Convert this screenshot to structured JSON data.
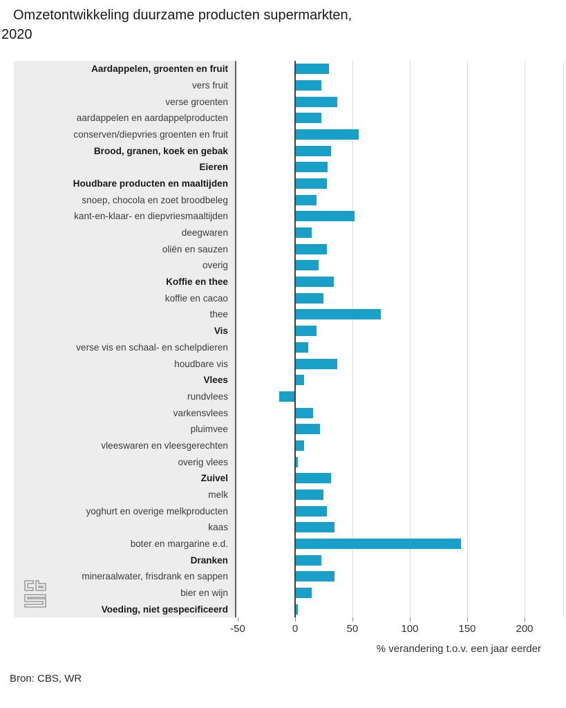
{
  "title": {
    "line1": "Omzetontwikkeling duurzame producten supermarkten,",
    "line2": "2020"
  },
  "source": "Bron: CBS, WR",
  "logo": "cbs-logo",
  "colors": {
    "bar": "#19a0c8",
    "label_panel": "#ededed",
    "gridline": "#d9d9d9",
    "zero_line": "#404040",
    "axis_text": "#333333"
  },
  "chart_data": {
    "type": "bar",
    "orientation": "horizontal",
    "title": "Omzetontwikkeling duurzame producten supermarkten, 2020",
    "xlabel": "% verandering t.o.v. een jaar eerder",
    "xlim": [
      -50,
      236
    ],
    "xticks": [
      -50,
      0,
      50,
      100,
      150,
      200
    ],
    "grid": true,
    "legend": false,
    "rows": [
      {
        "label": "Aardappelen, groenten en fruit",
        "value": 29,
        "bold": true
      },
      {
        "label": "vers fruit",
        "value": 22,
        "bold": false
      },
      {
        "label": "verse groenten",
        "value": 36,
        "bold": false
      },
      {
        "label": "aardappelen en aardappelproducten",
        "value": 22,
        "bold": false
      },
      {
        "label": "conserven/diepvries groenten en fruit",
        "value": 55,
        "bold": false
      },
      {
        "label": "Brood, granen, koek en gebak",
        "value": 31,
        "bold": true
      },
      {
        "label": "Eieren",
        "value": 28,
        "bold": true
      },
      {
        "label": "Houdbare producten en maaltijden",
        "value": 27,
        "bold": true
      },
      {
        "label": "snoep, chocola en zoet broodbeleg",
        "value": 18,
        "bold": false
      },
      {
        "label": "kant-en-klaar- en diepvriesmaaltijden",
        "value": 51,
        "bold": false
      },
      {
        "label": "deegwaren",
        "value": 14,
        "bold": false
      },
      {
        "label": "oliën en sauzen",
        "value": 27,
        "bold": false
      },
      {
        "label": "overig",
        "value": 20,
        "bold": false
      },
      {
        "label": "Koffie en thee",
        "value": 33,
        "bold": true
      },
      {
        "label": "koffie en cacao",
        "value": 24,
        "bold": false
      },
      {
        "label": "thee",
        "value": 74,
        "bold": false
      },
      {
        "label": "Vis",
        "value": 18,
        "bold": true
      },
      {
        "label": "verse vis en schaal- en schelpdieren",
        "value": 11,
        "bold": false
      },
      {
        "label": "houdbare vis",
        "value": 36,
        "bold": false
      },
      {
        "label": "Vlees",
        "value": 7,
        "bold": true
      },
      {
        "label": "rundvlees",
        "value": -13,
        "bold": false
      },
      {
        "label": "varkensvlees",
        "value": 15,
        "bold": false
      },
      {
        "label": "pluimvee",
        "value": 21,
        "bold": false
      },
      {
        "label": "vleeswaren en vleesgerechten",
        "value": 7,
        "bold": false
      },
      {
        "label": "overig vlees",
        "value": 2,
        "bold": false
      },
      {
        "label": "Zuivel",
        "value": 31,
        "bold": true
      },
      {
        "label": "melk",
        "value": 24,
        "bold": false
      },
      {
        "label": "yoghurt en overige melkproducten",
        "value": 27,
        "bold": false
      },
      {
        "label": "kaas",
        "value": 34,
        "bold": false
      },
      {
        "label": "boter en margarine e.d.",
        "value": 144,
        "bold": false
      },
      {
        "label": "Dranken",
        "value": 22,
        "bold": true
      },
      {
        "label": "mineraalwater, frisdrank en sappen",
        "value": 34,
        "bold": false
      },
      {
        "label": "bier en wijn",
        "value": 14,
        "bold": false
      },
      {
        "label": "Voeding, niet gespecificeerd",
        "value": 2,
        "bold": true
      }
    ]
  }
}
